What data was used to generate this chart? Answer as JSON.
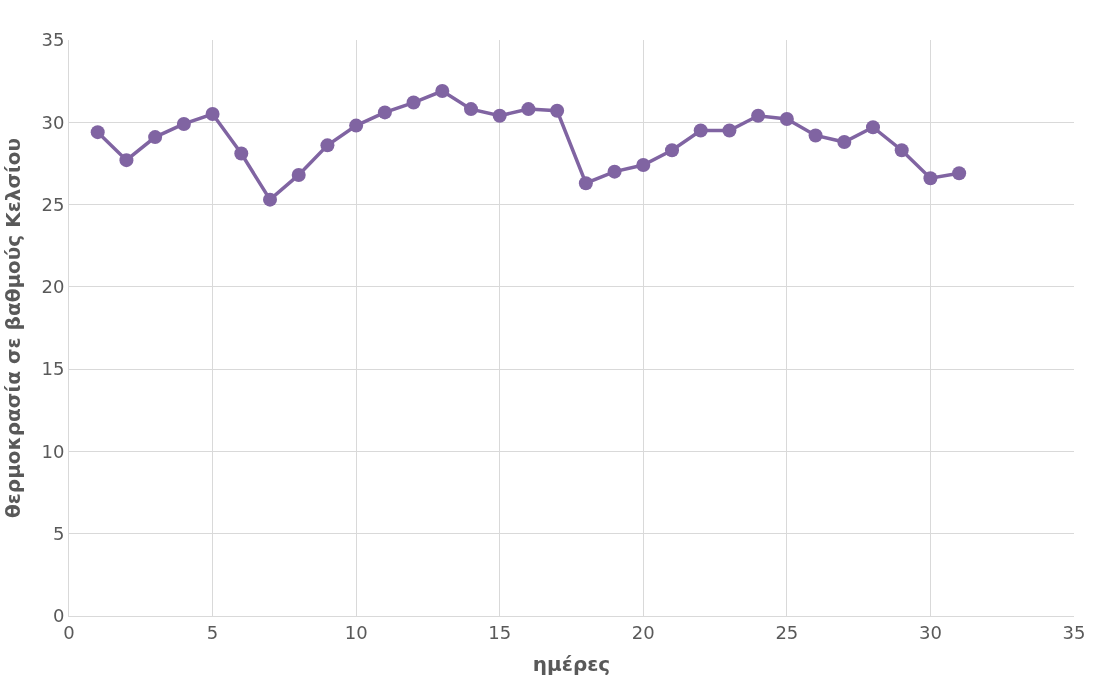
{
  "chart_data": {
    "type": "line",
    "xlabel": "ημέρες",
    "ylabel": "θερμοκρασία σε βαθμούς Κελσίου",
    "x": [
      1,
      2,
      3,
      4,
      5,
      6,
      7,
      8,
      9,
      10,
      11,
      12,
      13,
      14,
      15,
      16,
      17,
      18,
      19,
      20,
      21,
      22,
      23,
      24,
      25,
      26,
      27,
      28,
      29,
      30,
      31
    ],
    "series": [
      {
        "color": "#8064a2",
        "values": [
          29.4,
          27.7,
          29.1,
          29.9,
          30.5,
          28.1,
          25.3,
          26.8,
          28.6,
          29.8,
          30.6,
          31.2,
          31.9,
          30.8,
          30.4,
          30.8,
          30.7,
          26.3,
          27.0,
          27.4,
          28.3,
          29.5,
          29.5,
          30.4,
          30.2,
          29.2,
          28.8,
          29.7,
          28.3,
          26.6,
          26.9
        ]
      }
    ],
    "xlim": [
      0,
      35
    ],
    "xticks": [
      0,
      5,
      10,
      15,
      20,
      25,
      30,
      35
    ],
    "ylim": [
      0,
      35
    ],
    "yticks": [
      0,
      5,
      10,
      15,
      20,
      25,
      30,
      35
    ],
    "grid": true,
    "marker": "circle",
    "line_style": "solid"
  }
}
